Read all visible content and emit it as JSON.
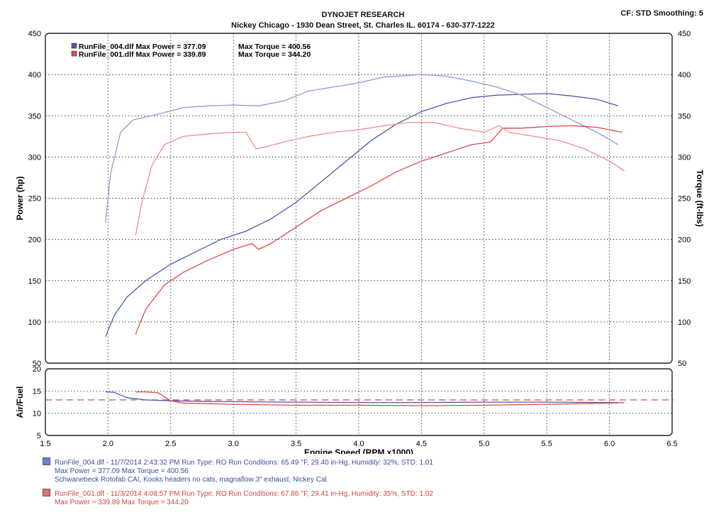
{
  "header": {
    "title": "DYNOJET RESEARCH",
    "subtitle": "Nickey Chicago - 1930 Dean Street, St. Charles IL. 60174 - 630-377-1222",
    "cf_smoothing": "CF: STD  Smoothing: 5"
  },
  "colors": {
    "run004": "#4a5bb0",
    "run001": "#dd4a4a",
    "run004_light": "#8f9ad8",
    "run001_light": "#ef8f8f"
  },
  "chart_data": [
    {
      "type": "line",
      "xlabel": "Engine Speed (RPM x1000)",
      "ylabel": "Power (hp)",
      "y2label": "Torque (ft-lbs)",
      "xlim": [
        1.5,
        6.5
      ],
      "ylim": [
        50,
        450
      ],
      "y2lim": [
        50,
        450
      ],
      "x_ticks": [
        "1.5",
        "2.0",
        "2.5",
        "3.0",
        "3.5",
        "4.0",
        "4.5",
        "5.0",
        "5.5",
        "6.0",
        "6.5"
      ],
      "y_ticks": [
        "50",
        "100",
        "150",
        "200",
        "250",
        "300",
        "350",
        "400",
        "450"
      ],
      "grid": true,
      "legend_position": "top-left",
      "legend": [
        {
          "file": "RunFile_004.dlf Max Power = 377.09",
          "torque": "Max Torque = 400.56"
        },
        {
          "file": "RunFile_001.dlf Max Power = 339.89",
          "torque": "Max Torque = 344.20"
        }
      ],
      "series": [
        {
          "name": "RunFile_004 Power",
          "axis": "left",
          "color_key": "run004",
          "x": [
            1.98,
            2.05,
            2.15,
            2.3,
            2.5,
            2.7,
            2.9,
            3.1,
            3.3,
            3.5,
            3.7,
            3.9,
            4.1,
            4.3,
            4.5,
            4.7,
            4.9,
            5.1,
            5.3,
            5.5,
            5.7,
            5.9,
            6.07
          ],
          "y": [
            82,
            108,
            130,
            150,
            170,
            185,
            200,
            210,
            225,
            245,
            270,
            295,
            320,
            340,
            355,
            365,
            372,
            375,
            376,
            377,
            374,
            370,
            362
          ]
        },
        {
          "name": "RunFile_004 Torque",
          "axis": "right",
          "color_key": "run004_light",
          "x": [
            1.98,
            2.02,
            2.1,
            2.2,
            2.4,
            2.6,
            2.8,
            3.0,
            3.2,
            3.4,
            3.6,
            3.8,
            4.0,
            4.2,
            4.4,
            4.5,
            4.7,
            4.9,
            5.1,
            5.3,
            5.5,
            5.7,
            5.9,
            6.07
          ],
          "y": [
            220,
            280,
            330,
            345,
            352,
            360,
            362,
            363,
            362,
            368,
            380,
            385,
            390,
            397,
            399,
            400,
            398,
            392,
            385,
            375,
            360,
            345,
            330,
            315
          ]
        },
        {
          "name": "RunFile_001 Power",
          "axis": "left",
          "color_key": "run001",
          "x": [
            2.22,
            2.3,
            2.45,
            2.6,
            2.8,
            3.0,
            3.15,
            3.2,
            3.3,
            3.5,
            3.7,
            3.9,
            4.1,
            4.3,
            4.5,
            4.7,
            4.9,
            5.05,
            5.15,
            5.3,
            5.5,
            5.7,
            5.9,
            6.1
          ],
          "y": [
            85,
            115,
            145,
            160,
            175,
            188,
            195,
            188,
            195,
            215,
            235,
            250,
            265,
            282,
            295,
            305,
            315,
            318,
            335,
            335,
            337,
            338,
            336,
            330
          ]
        },
        {
          "name": "RunFile_001 Torque",
          "axis": "right",
          "color_key": "run001_light",
          "x": [
            2.22,
            2.27,
            2.35,
            2.45,
            2.6,
            2.8,
            3.0,
            3.1,
            3.18,
            3.25,
            3.4,
            3.6,
            3.8,
            4.0,
            4.2,
            4.4,
            4.6,
            4.8,
            5.0,
            5.12,
            5.2,
            5.4,
            5.6,
            5.8,
            6.0,
            6.12
          ],
          "y": [
            205,
            245,
            290,
            315,
            325,
            328,
            330,
            330,
            310,
            312,
            318,
            325,
            330,
            333,
            338,
            342,
            342,
            335,
            330,
            338,
            330,
            325,
            320,
            310,
            295,
            283
          ]
        }
      ]
    },
    {
      "type": "line",
      "ylabel": "Air/Fuel",
      "xlim": [
        1.5,
        6.5
      ],
      "ylim": [
        5,
        20
      ],
      "y_ticks": [
        "5",
        "10",
        "15",
        "20"
      ],
      "grid": true,
      "reference_line": 13,
      "series": [
        {
          "name": "RunFile_004 Air/Fuel",
          "color_key": "run004",
          "x": [
            1.98,
            2.05,
            2.15,
            2.3,
            2.5,
            2.7,
            3.0,
            3.5,
            4.0,
            4.5,
            5.0,
            5.5,
            6.0,
            6.07
          ],
          "y": [
            14.8,
            14.7,
            13.5,
            13.0,
            12.8,
            12.7,
            12.6,
            12.5,
            12.4,
            12.4,
            12.5,
            12.5,
            12.4,
            12.4
          ]
        },
        {
          "name": "RunFile_001 Air/Fuel",
          "color_key": "run001",
          "x": [
            2.22,
            2.3,
            2.4,
            2.5,
            2.6,
            3.0,
            3.5,
            4.0,
            4.5,
            5.0,
            5.5,
            6.0,
            6.12
          ],
          "y": [
            14.8,
            14.8,
            14.6,
            12.8,
            12.3,
            12.0,
            11.8,
            11.8,
            11.7,
            11.8,
            12.0,
            12.3,
            12.4
          ]
        }
      ]
    }
  ],
  "run_info": [
    {
      "line1": "RunFile_004.dlf - 11/7/2014 2:43:32 PM  Run Type: RO  Run Conditions: 65.49 °F, 29.40 in-Hg,  Humidity:  32%, STD: 1.01",
      "line2": "Max Power = 377.09  Max Torque = 400.56",
      "line3": "Schwanebeck Rotofab CAI, Kooks headers no cats, magnaflow 3\" exhaust,  Nickey Cal."
    },
    {
      "line1": "RunFile_001.dlf - 11/3/2014 4:08:57 PM  Run Type: RO  Run Conditions: 67.88 °F, 29.41 in-Hg,  Humidity:  35%, STD: 1.02",
      "line2": "Max Power = 339.89  Max Torque = 344.20"
    }
  ]
}
